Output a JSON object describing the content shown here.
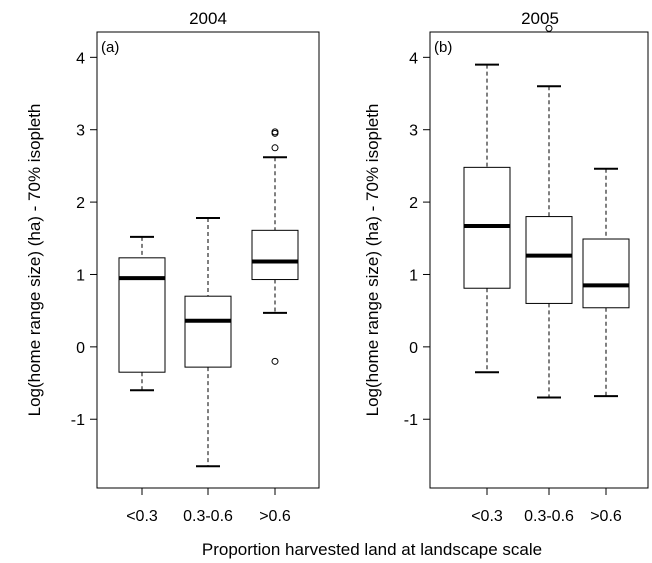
{
  "figure": {
    "shared_xlabel": "Proportion harvested land at landscape scale"
  },
  "chart_data": [
    {
      "type": "box",
      "title": "2004",
      "panel_label": "(a)",
      "ylabel": "Log(home range size) (ha) - 70% isopleth",
      "xlabel": "Proportion harvested land at landscape scale",
      "ylim": [
        -1.95,
        4.35
      ],
      "yticks": [
        -1,
        0,
        1,
        2,
        3,
        4
      ],
      "ytick_labels": [
        "-1",
        "0",
        "1",
        "2",
        "3",
        "4"
      ],
      "categories": [
        "<0.3",
        "0.3-0.6",
        ">0.6"
      ],
      "boxes": [
        {
          "category": "<0.3",
          "whisker_low": -0.6,
          "q1": -0.35,
          "median": 0.95,
          "q3": 1.23,
          "whisker_high": 1.52,
          "outliers": []
        },
        {
          "category": "0.3-0.6",
          "whisker_low": -1.65,
          "q1": -0.28,
          "median": 0.36,
          "q3": 0.7,
          "whisker_high": 1.78,
          "outliers": []
        },
        {
          "category": ">0.6",
          "whisker_low": 0.47,
          "q1": 0.93,
          "median": 1.18,
          "q3": 1.61,
          "whisker_high": 2.62,
          "outliers": [
            -0.2,
            2.75,
            2.95,
            2.97
          ]
        }
      ]
    },
    {
      "type": "box",
      "title": "2005",
      "panel_label": "(b)",
      "ylabel": "Log(home range size) (ha) - 70% isopleth",
      "xlabel": "Proportion harvested land at landscape scale",
      "ylim": [
        -1.95,
        4.35
      ],
      "yticks": [
        -1,
        0,
        1,
        2,
        3,
        4
      ],
      "ytick_labels": [
        "-1",
        "0",
        "1",
        "2",
        "3",
        "4"
      ],
      "categories": [
        "<0.3",
        "0.3-0.6",
        ">0.6"
      ],
      "boxes": [
        {
          "category": "<0.3",
          "whisker_low": -0.35,
          "q1": 0.81,
          "median": 1.67,
          "q3": 2.48,
          "whisker_high": 3.9,
          "outliers": []
        },
        {
          "category": "0.3-0.6",
          "whisker_low": -0.7,
          "q1": 0.6,
          "median": 1.26,
          "q3": 1.8,
          "whisker_high": 3.6,
          "outliers": [
            4.4
          ]
        },
        {
          "category": ">0.6",
          "whisker_low": -0.68,
          "q1": 0.54,
          "median": 0.85,
          "q3": 1.49,
          "whisker_high": 2.46,
          "outliers": []
        }
      ]
    }
  ]
}
